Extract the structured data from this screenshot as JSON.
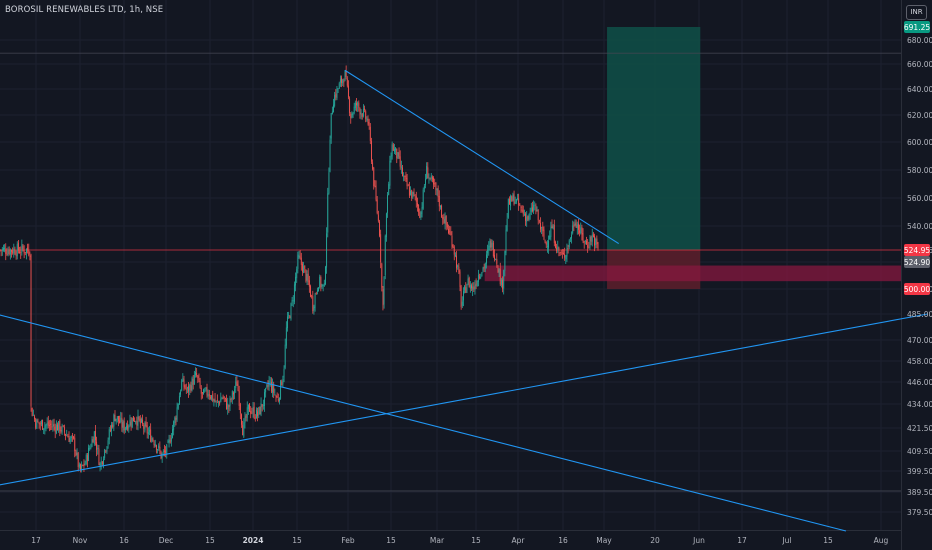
{
  "header": {
    "title": "BOROSIL RENEWABLES LTD, 1h, NSE",
    "currency_button": "INR"
  },
  "chart_data": {
    "type": "candlestick",
    "title": "BOROSIL RENEWABLES LTD, 1h, NSE",
    "price_axis": {
      "ticks": [
        "680.00",
        "660.00",
        "640.00",
        "620.00",
        "600.00",
        "580.00",
        "560.00",
        "540.00",
        "524.95",
        "500.00",
        "485.00",
        "470.00",
        "458.00",
        "446.00",
        "434.00",
        "421.50",
        "409.50",
        "399.50",
        "389.50",
        "379.50"
      ]
    },
    "time_axis": {
      "ticks": [
        {
          "label": "17"
        },
        {
          "label": "Nov"
        },
        {
          "label": "16"
        },
        {
          "label": "Dec"
        },
        {
          "label": "15"
        },
        {
          "label": "2024",
          "bold": true
        },
        {
          "label": "15"
        },
        {
          "label": "Feb"
        },
        {
          "label": "15"
        },
        {
          "label": "Mar"
        },
        {
          "label": "15"
        },
        {
          "label": "Apr"
        },
        {
          "label": "16"
        },
        {
          "label": "May"
        },
        {
          "label": "20"
        },
        {
          "label": "Jun"
        },
        {
          "label": "17"
        },
        {
          "label": "Jul"
        },
        {
          "label": "15"
        },
        {
          "label": "Aug"
        }
      ]
    },
    "price_badges": [
      {
        "value": "691.25",
        "color": "#089981"
      },
      {
        "value": "524.95",
        "color": "#f23645"
      },
      {
        "value": "524.90",
        "color": "#5d606b"
      },
      {
        "value": "500.00",
        "color": "#f23645"
      }
    ],
    "horizontal_lines": [
      {
        "price": 669,
        "color": "#434651"
      },
      {
        "price": 524.95,
        "color": "#f23645"
      },
      {
        "price": 390,
        "color": "#434651"
      }
    ],
    "price_path": [
      [
        "2023-10-15",
        433
      ],
      [
        "2023-10-17",
        424
      ],
      [
        "2023-10-25",
        422
      ],
      [
        "2023-10-30",
        414
      ],
      [
        "2023-11-01",
        399
      ],
      [
        "2023-11-03",
        404
      ],
      [
        "2023-11-06",
        419
      ],
      [
        "2023-11-08",
        402
      ],
      [
        "2023-11-13",
        428
      ],
      [
        "2023-11-16",
        422
      ],
      [
        "2023-11-20",
        427
      ],
      [
        "2023-11-24",
        420
      ],
      [
        "2023-11-27",
        414
      ],
      [
        "2023-11-29",
        407
      ],
      [
        "2023-12-01",
        410
      ],
      [
        "2023-12-04",
        428
      ],
      [
        "2023-12-06",
        446
      ],
      [
        "2023-12-08",
        441
      ],
      [
        "2023-12-11",
        450
      ],
      [
        "2023-12-13",
        438
      ],
      [
        "2023-12-15",
        441
      ],
      [
        "2023-12-18",
        434
      ],
      [
        "2023-12-20",
        438
      ],
      [
        "2023-12-22",
        432
      ],
      [
        "2023-12-25",
        446
      ],
      [
        "2023-12-27",
        420
      ],
      [
        "2023-12-29",
        432
      ],
      [
        "2024-01-01",
        428
      ],
      [
        "2024-01-03",
        435
      ],
      [
        "2024-01-05",
        446
      ],
      [
        "2024-01-08",
        436
      ],
      [
        "2024-01-10",
        452
      ],
      [
        "2024-01-11",
        478
      ],
      [
        "2024-01-13",
        492
      ],
      [
        "2024-01-15",
        520
      ],
      [
        "2024-01-17",
        512
      ],
      [
        "2024-01-19",
        500
      ],
      [
        "2024-01-20",
        490
      ],
      [
        "2024-01-22",
        505
      ],
      [
        "2024-01-24",
        500
      ],
      [
        "2024-01-25",
        551
      ],
      [
        "2024-01-26",
        610
      ],
      [
        "2024-01-27",
        632
      ],
      [
        "2024-01-29",
        642
      ],
      [
        "2024-01-31",
        652
      ],
      [
        "2024-02-01",
        636
      ],
      [
        "2024-02-02",
        620
      ],
      [
        "2024-02-04",
        628
      ],
      [
        "2024-02-06",
        622
      ],
      [
        "2024-02-08",
        615
      ],
      [
        "2024-02-10",
        570
      ],
      [
        "2024-02-11",
        552
      ],
      [
        "2024-02-12",
        535
      ],
      [
        "2024-02-13",
        485
      ],
      [
        "2024-02-14",
        540
      ],
      [
        "2024-02-16",
        598
      ],
      [
        "2024-02-18",
        590
      ],
      [
        "2024-02-20",
        575
      ],
      [
        "2024-02-22",
        565
      ],
      [
        "2024-02-24",
        560
      ],
      [
        "2024-02-26",
        548
      ],
      [
        "2024-02-28",
        580
      ],
      [
        "2024-03-01",
        570
      ],
      [
        "2024-03-03",
        562
      ],
      [
        "2024-03-04",
        550
      ],
      [
        "2024-03-06",
        540
      ],
      [
        "2024-03-08",
        530
      ],
      [
        "2024-03-10",
        510
      ],
      [
        "2024-03-11",
        490
      ],
      [
        "2024-03-13",
        505
      ],
      [
        "2024-03-15",
        500
      ],
      [
        "2024-03-17",
        510
      ],
      [
        "2024-03-19",
        515
      ],
      [
        "2024-03-21",
        530
      ],
      [
        "2024-03-23",
        520
      ],
      [
        "2024-03-25",
        500
      ],
      [
        "2024-03-27",
        555
      ],
      [
        "2024-03-29",
        560
      ],
      [
        "2024-04-01",
        550
      ],
      [
        "2024-04-03",
        545
      ],
      [
        "2024-04-05",
        555
      ],
      [
        "2024-04-07",
        540
      ],
      [
        "2024-04-09",
        528
      ],
      [
        "2024-04-11",
        540
      ],
      [
        "2024-04-13",
        525
      ],
      [
        "2024-04-15",
        520
      ],
      [
        "2024-04-17",
        530
      ],
      [
        "2024-04-19",
        545
      ],
      [
        "2024-04-21",
        535
      ],
      [
        "2024-04-23",
        528
      ],
      [
        "2024-04-25",
        534
      ],
      [
        "2024-04-27",
        525
      ]
    ],
    "trendlines": [
      {
        "name": "falling-resistance",
        "from": [
          "2024-01-31",
          655
        ],
        "to": [
          "2024-05-04",
          529
        ],
        "color": "#2196f3"
      },
      {
        "name": "rising-support",
        "from": [
          "2023-10-01",
          392
        ],
        "to": [
          "2024-08-18",
          485
        ],
        "color": "#2196f3"
      },
      {
        "name": "falling-support",
        "from": [
          "2023-10-01",
          486
        ],
        "to": [
          "2024-07-21",
          370
        ],
        "color": "#2196f3"
      }
    ],
    "position_tool": {
      "side": "long",
      "entry": 524.95,
      "target": 691.25,
      "stop": 500.0,
      "start_date": "2024-04-30",
      "end_date": "2024-06-01",
      "profit_color": "#0f4c46",
      "loss_color": "#5a1e2b"
    },
    "demand_zone": {
      "top": 515,
      "bottom": 505,
      "start_date": "2024-03-19",
      "color": "#87183f"
    }
  }
}
